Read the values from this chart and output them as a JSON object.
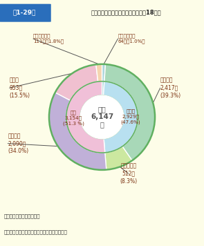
{
  "title_box": "第1-29図",
  "title_text": "道路形状別死亡事故発生件数（平成18年）",
  "total_lines": [
    "合計",
    "6,147",
    "件"
  ],
  "outer_slices": [
    {
      "label": "踏切・その他\n64件（1.0%）",
      "value": 64,
      "color": "#aed6dc"
    },
    {
      "label": "交差点内\n2,417件\n(39.3%)",
      "value": 2417,
      "color": "#a8d8b8"
    },
    {
      "label": "交差点付近\n512件\n(8.3%)",
      "value": 512,
      "color": "#cce8a0"
    },
    {
      "label": "一般単路\n2,090件\n(34.0%)",
      "value": 2090,
      "color": "#c0b0d8"
    },
    {
      "label": "カーブ\n953件\n(15.5%)",
      "value": 953,
      "color": "#f0c0d0"
    },
    {
      "label": "トンネル・橋\n111件（1.8%）",
      "value": 111,
      "color": "#f5d5b0"
    }
  ],
  "inner_slices": [
    {
      "label": "交差点\n2,929件\n(47.6%)",
      "value": 2929,
      "color": "#b8e0f0"
    },
    {
      "label": "単路\n3,154件\n(51.3 %)",
      "value": 3154,
      "color": "#f0c0d8"
    }
  ],
  "inner_tiny": {
    "value": 64,
    "color": "#aed6dc"
  },
  "note1": "注１　警察庁資料による。",
  "note2": "　２　（　）内は，発生件数の構成率である。",
  "bg_color": "#fdfde8",
  "title_bg": "#2a6ebb",
  "outer_border": "#60b060",
  "inner_border": "#60b060",
  "label_color": "#7b3010",
  "center_color": "#555555"
}
